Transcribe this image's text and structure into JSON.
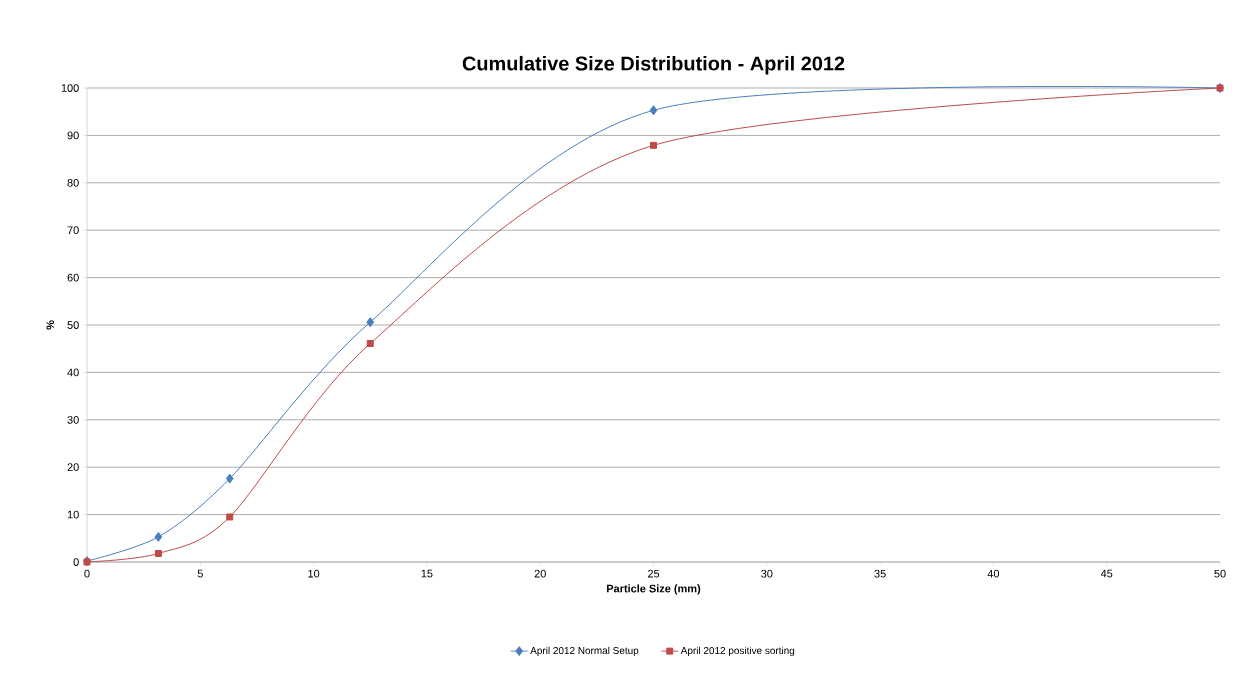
{
  "chart_data": {
    "type": "line",
    "title": "Cumulative Size Distribution - April 2012",
    "xlabel": "Particle Size (mm)",
    "ylabel": "%",
    "x": [
      0,
      3.15,
      6.3,
      12.5,
      25,
      50
    ],
    "series": [
      {
        "name": "April 2012 Normal Setup",
        "color": "#4a7ebb",
        "marker": "diamond",
        "values": [
          0.2,
          5.3,
          17.6,
          50.6,
          95.3,
          100
        ]
      },
      {
        "name": "April 2012 positive sorting",
        "color": "#be4b48",
        "marker": "square",
        "values": [
          0,
          1.8,
          9.5,
          46.1,
          87.9,
          100
        ]
      }
    ],
    "xlim": [
      0,
      50
    ],
    "xticks": [
      0,
      5,
      10,
      15,
      20,
      25,
      30,
      35,
      40,
      45,
      50
    ],
    "ylim": [
      0,
      100
    ],
    "yticks": [
      0,
      10,
      20,
      30,
      40,
      50,
      60,
      70,
      80,
      90,
      100
    ],
    "grid": "y",
    "legend": "bottom",
    "line_style": "solid"
  }
}
